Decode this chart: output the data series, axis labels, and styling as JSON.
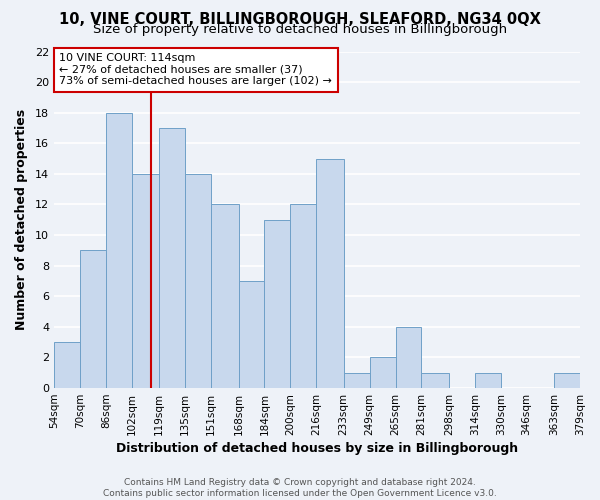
{
  "title": "10, VINE COURT, BILLINGBOROUGH, SLEAFORD, NG34 0QX",
  "subtitle": "Size of property relative to detached houses in Billingborough",
  "xlabel": "Distribution of detached houses by size in Billingborough",
  "ylabel": "Number of detached properties",
  "bin_edges": [
    54,
    70,
    86,
    102,
    119,
    135,
    151,
    168,
    184,
    200,
    216,
    233,
    249,
    265,
    281,
    298,
    314,
    330,
    346,
    363,
    379
  ],
  "bin_counts": [
    3,
    9,
    18,
    14,
    17,
    14,
    12,
    7,
    11,
    12,
    15,
    1,
    2,
    4,
    1,
    0,
    1,
    0,
    0,
    1
  ],
  "bar_color": "#c8d8ed",
  "bar_edgecolor": "#6fa0c8",
  "vline_x": 114,
  "vline_color": "#cc0000",
  "annotation_text": "10 VINE COURT: 114sqm\n← 27% of detached houses are smaller (37)\n73% of semi-detached houses are larger (102) →",
  "annotation_box_edgecolor": "#cc0000",
  "annotation_box_facecolor": "#ffffff",
  "ylim": [
    0,
    22
  ],
  "yticks": [
    0,
    2,
    4,
    6,
    8,
    10,
    12,
    14,
    16,
    18,
    20,
    22
  ],
  "footer_line1": "Contains HM Land Registry data © Crown copyright and database right 2024.",
  "footer_line2": "Contains public sector information licensed under the Open Government Licence v3.0.",
  "tick_labels": [
    "54sqm",
    "70sqm",
    "86sqm",
    "102sqm",
    "119sqm",
    "135sqm",
    "151sqm",
    "168sqm",
    "184sqm",
    "200sqm",
    "216sqm",
    "233sqm",
    "249sqm",
    "265sqm",
    "281sqm",
    "298sqm",
    "314sqm",
    "330sqm",
    "346sqm",
    "363sqm",
    "379sqm"
  ],
  "background_color": "#eef2f8",
  "grid_color": "#ffffff",
  "title_fontsize": 10.5,
  "subtitle_fontsize": 9.5,
  "axis_label_fontsize": 9,
  "tick_fontsize": 7.5,
  "annotation_fontsize": 8,
  "footer_fontsize": 6.5
}
